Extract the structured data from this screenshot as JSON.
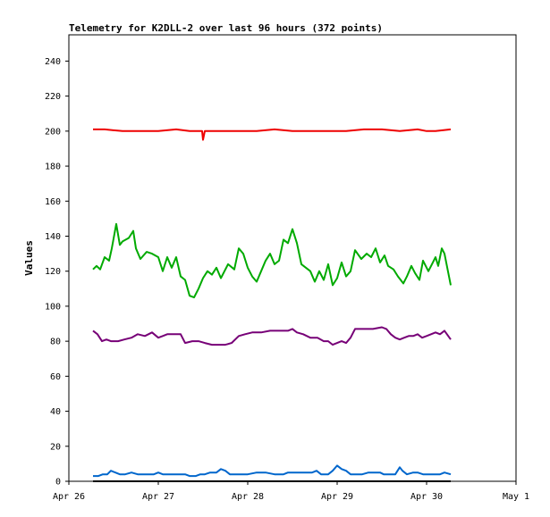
{
  "chart_data": {
    "type": "line",
    "title": "Telemetry for K2DLL-2 over last 96 hours (372 points)",
    "xlabel": "",
    "ylabel": "Values",
    "x_ticks": [
      "Apr 26",
      "Apr 27",
      "Apr 28",
      "Apr 29",
      "Apr 30",
      "May 1"
    ],
    "xlim": [
      "Apr 26",
      "May 1"
    ],
    "ylim": [
      0,
      255
    ],
    "y_ticks": [
      0,
      20,
      40,
      60,
      80,
      100,
      120,
      140,
      160,
      180,
      200,
      220,
      240
    ],
    "grid": false,
    "x_unit": "days since Apr 26 00:00",
    "series": [
      {
        "color": "#ee0000",
        "points": [
          [
            0.27,
            201
          ],
          [
            0.4,
            201
          ],
          [
            0.6,
            200
          ],
          [
            0.8,
            200
          ],
          [
            1.0,
            200
          ],
          [
            1.2,
            201
          ],
          [
            1.35,
            200
          ],
          [
            1.49,
            200
          ],
          [
            1.5,
            195
          ],
          [
            1.52,
            200
          ],
          [
            1.7,
            200
          ],
          [
            1.9,
            200
          ],
          [
            2.1,
            200
          ],
          [
            2.3,
            201
          ],
          [
            2.5,
            200
          ],
          [
            2.7,
            200
          ],
          [
            2.9,
            200
          ],
          [
            3.1,
            200
          ],
          [
            3.3,
            201
          ],
          [
            3.5,
            201
          ],
          [
            3.7,
            200
          ],
          [
            3.9,
            201
          ],
          [
            4.0,
            200
          ],
          [
            4.1,
            200
          ],
          [
            4.27,
            201
          ]
        ]
      },
      {
        "color": "#00aa00",
        "points": [
          [
            0.27,
            121
          ],
          [
            0.31,
            123
          ],
          [
            0.35,
            121
          ],
          [
            0.4,
            128
          ],
          [
            0.45,
            126
          ],
          [
            0.48,
            133
          ],
          [
            0.53,
            147
          ],
          [
            0.57,
            135
          ],
          [
            0.6,
            137
          ],
          [
            0.67,
            139
          ],
          [
            0.72,
            143
          ],
          [
            0.75,
            133
          ],
          [
            0.8,
            127
          ],
          [
            0.87,
            131
          ],
          [
            0.93,
            130
          ],
          [
            1.0,
            128
          ],
          [
            1.05,
            120
          ],
          [
            1.1,
            128
          ],
          [
            1.15,
            122
          ],
          [
            1.2,
            128
          ],
          [
            1.25,
            117
          ],
          [
            1.3,
            115
          ],
          [
            1.35,
            106
          ],
          [
            1.4,
            105
          ],
          [
            1.45,
            110
          ],
          [
            1.5,
            116
          ],
          [
            1.55,
            120
          ],
          [
            1.6,
            118
          ],
          [
            1.65,
            122
          ],
          [
            1.7,
            116
          ],
          [
            1.78,
            124
          ],
          [
            1.85,
            121
          ],
          [
            1.9,
            133
          ],
          [
            1.95,
            130
          ],
          [
            2.0,
            122
          ],
          [
            2.05,
            117
          ],
          [
            2.1,
            114
          ],
          [
            2.15,
            120
          ],
          [
            2.2,
            126
          ],
          [
            2.25,
            130
          ],
          [
            2.3,
            124
          ],
          [
            2.35,
            126
          ],
          [
            2.4,
            138
          ],
          [
            2.45,
            136
          ],
          [
            2.5,
            144
          ],
          [
            2.55,
            136
          ],
          [
            2.6,
            124
          ],
          [
            2.7,
            120
          ],
          [
            2.75,
            114
          ],
          [
            2.8,
            120
          ],
          [
            2.85,
            115
          ],
          [
            2.9,
            124
          ],
          [
            2.95,
            112
          ],
          [
            3.0,
            116
          ],
          [
            3.05,
            125
          ],
          [
            3.1,
            117
          ],
          [
            3.15,
            120
          ],
          [
            3.2,
            132
          ],
          [
            3.27,
            127
          ],
          [
            3.33,
            130
          ],
          [
            3.38,
            128
          ],
          [
            3.43,
            133
          ],
          [
            3.48,
            125
          ],
          [
            3.53,
            129
          ],
          [
            3.57,
            123
          ],
          [
            3.63,
            121
          ],
          [
            3.68,
            117
          ],
          [
            3.74,
            113
          ],
          [
            3.78,
            117
          ],
          [
            3.83,
            123
          ],
          [
            3.87,
            119
          ],
          [
            3.92,
            115
          ],
          [
            3.96,
            126
          ],
          [
            4.02,
            120
          ],
          [
            4.06,
            124
          ],
          [
            4.1,
            128
          ],
          [
            4.13,
            123
          ],
          [
            4.17,
            133
          ],
          [
            4.2,
            130
          ],
          [
            4.27,
            112
          ]
        ]
      },
      {
        "color": "#770077",
        "points": [
          [
            0.27,
            86
          ],
          [
            0.32,
            84
          ],
          [
            0.37,
            80
          ],
          [
            0.42,
            81
          ],
          [
            0.47,
            80
          ],
          [
            0.55,
            80
          ],
          [
            0.62,
            81
          ],
          [
            0.7,
            82
          ],
          [
            0.77,
            84
          ],
          [
            0.85,
            83
          ],
          [
            0.93,
            85
          ],
          [
            1.0,
            82
          ],
          [
            1.05,
            83
          ],
          [
            1.1,
            84
          ],
          [
            1.2,
            84
          ],
          [
            1.25,
            84
          ],
          [
            1.3,
            79
          ],
          [
            1.38,
            80
          ],
          [
            1.45,
            80
          ],
          [
            1.52,
            79
          ],
          [
            1.6,
            78
          ],
          [
            1.67,
            78
          ],
          [
            1.75,
            78
          ],
          [
            1.82,
            79
          ],
          [
            1.9,
            83
          ],
          [
            1.97,
            84
          ],
          [
            2.05,
            85
          ],
          [
            2.15,
            85
          ],
          [
            2.25,
            86
          ],
          [
            2.35,
            86
          ],
          [
            2.45,
            86
          ],
          [
            2.5,
            87
          ],
          [
            2.55,
            85
          ],
          [
            2.62,
            84
          ],
          [
            2.7,
            82
          ],
          [
            2.78,
            82
          ],
          [
            2.85,
            80
          ],
          [
            2.9,
            80
          ],
          [
            2.95,
            78
          ],
          [
            3.0,
            79
          ],
          [
            3.05,
            80
          ],
          [
            3.1,
            79
          ],
          [
            3.15,
            82
          ],
          [
            3.2,
            87
          ],
          [
            3.3,
            87
          ],
          [
            3.4,
            87
          ],
          [
            3.5,
            88
          ],
          [
            3.55,
            87
          ],
          [
            3.6,
            84
          ],
          [
            3.65,
            82
          ],
          [
            3.7,
            81
          ],
          [
            3.75,
            82
          ],
          [
            3.8,
            83
          ],
          [
            3.85,
            83
          ],
          [
            3.9,
            84
          ],
          [
            3.95,
            82
          ],
          [
            4.0,
            83
          ],
          [
            4.05,
            84
          ],
          [
            4.1,
            85
          ],
          [
            4.15,
            84
          ],
          [
            4.2,
            86
          ],
          [
            4.27,
            81
          ]
        ]
      },
      {
        "color": "#0066cc",
        "points": [
          [
            0.27,
            3
          ],
          [
            0.33,
            3
          ],
          [
            0.38,
            4
          ],
          [
            0.43,
            4
          ],
          [
            0.47,
            6
          ],
          [
            0.52,
            5
          ],
          [
            0.57,
            4
          ],
          [
            0.63,
            4
          ],
          [
            0.7,
            5
          ],
          [
            0.77,
            4
          ],
          [
            0.85,
            4
          ],
          [
            0.9,
            4
          ],
          [
            0.95,
            4
          ],
          [
            1.0,
            5
          ],
          [
            1.05,
            4
          ],
          [
            1.1,
            4
          ],
          [
            1.2,
            4
          ],
          [
            1.3,
            4
          ],
          [
            1.35,
            3
          ],
          [
            1.42,
            3
          ],
          [
            1.47,
            4
          ],
          [
            1.52,
            4
          ],
          [
            1.58,
            5
          ],
          [
            1.65,
            5
          ],
          [
            1.7,
            7
          ],
          [
            1.75,
            6
          ],
          [
            1.8,
            4
          ],
          [
            1.85,
            4
          ],
          [
            1.9,
            4
          ],
          [
            1.95,
            4
          ],
          [
            2.0,
            4
          ],
          [
            2.1,
            5
          ],
          [
            2.2,
            5
          ],
          [
            2.3,
            4
          ],
          [
            2.4,
            4
          ],
          [
            2.45,
            5
          ],
          [
            2.5,
            5
          ],
          [
            2.58,
            5
          ],
          [
            2.65,
            5
          ],
          [
            2.72,
            5
          ],
          [
            2.77,
            6
          ],
          [
            2.82,
            4
          ],
          [
            2.9,
            4
          ],
          [
            2.95,
            6
          ],
          [
            3.0,
            9
          ],
          [
            3.05,
            7
          ],
          [
            3.1,
            6
          ],
          [
            3.15,
            4
          ],
          [
            3.2,
            4
          ],
          [
            3.28,
            4
          ],
          [
            3.35,
            5
          ],
          [
            3.42,
            5
          ],
          [
            3.48,
            5
          ],
          [
            3.52,
            4
          ],
          [
            3.57,
            4
          ],
          [
            3.65,
            4
          ],
          [
            3.7,
            8
          ],
          [
            3.73,
            6
          ],
          [
            3.78,
            4
          ],
          [
            3.85,
            5
          ],
          [
            3.9,
            5
          ],
          [
            3.96,
            4
          ],
          [
            4.03,
            4
          ],
          [
            4.08,
            4
          ],
          [
            4.15,
            4
          ],
          [
            4.2,
            5
          ],
          [
            4.27,
            4
          ]
        ]
      },
      {
        "color": "#000000",
        "points": [
          [
            0.27,
            0
          ],
          [
            4.27,
            0
          ]
        ]
      }
    ]
  }
}
